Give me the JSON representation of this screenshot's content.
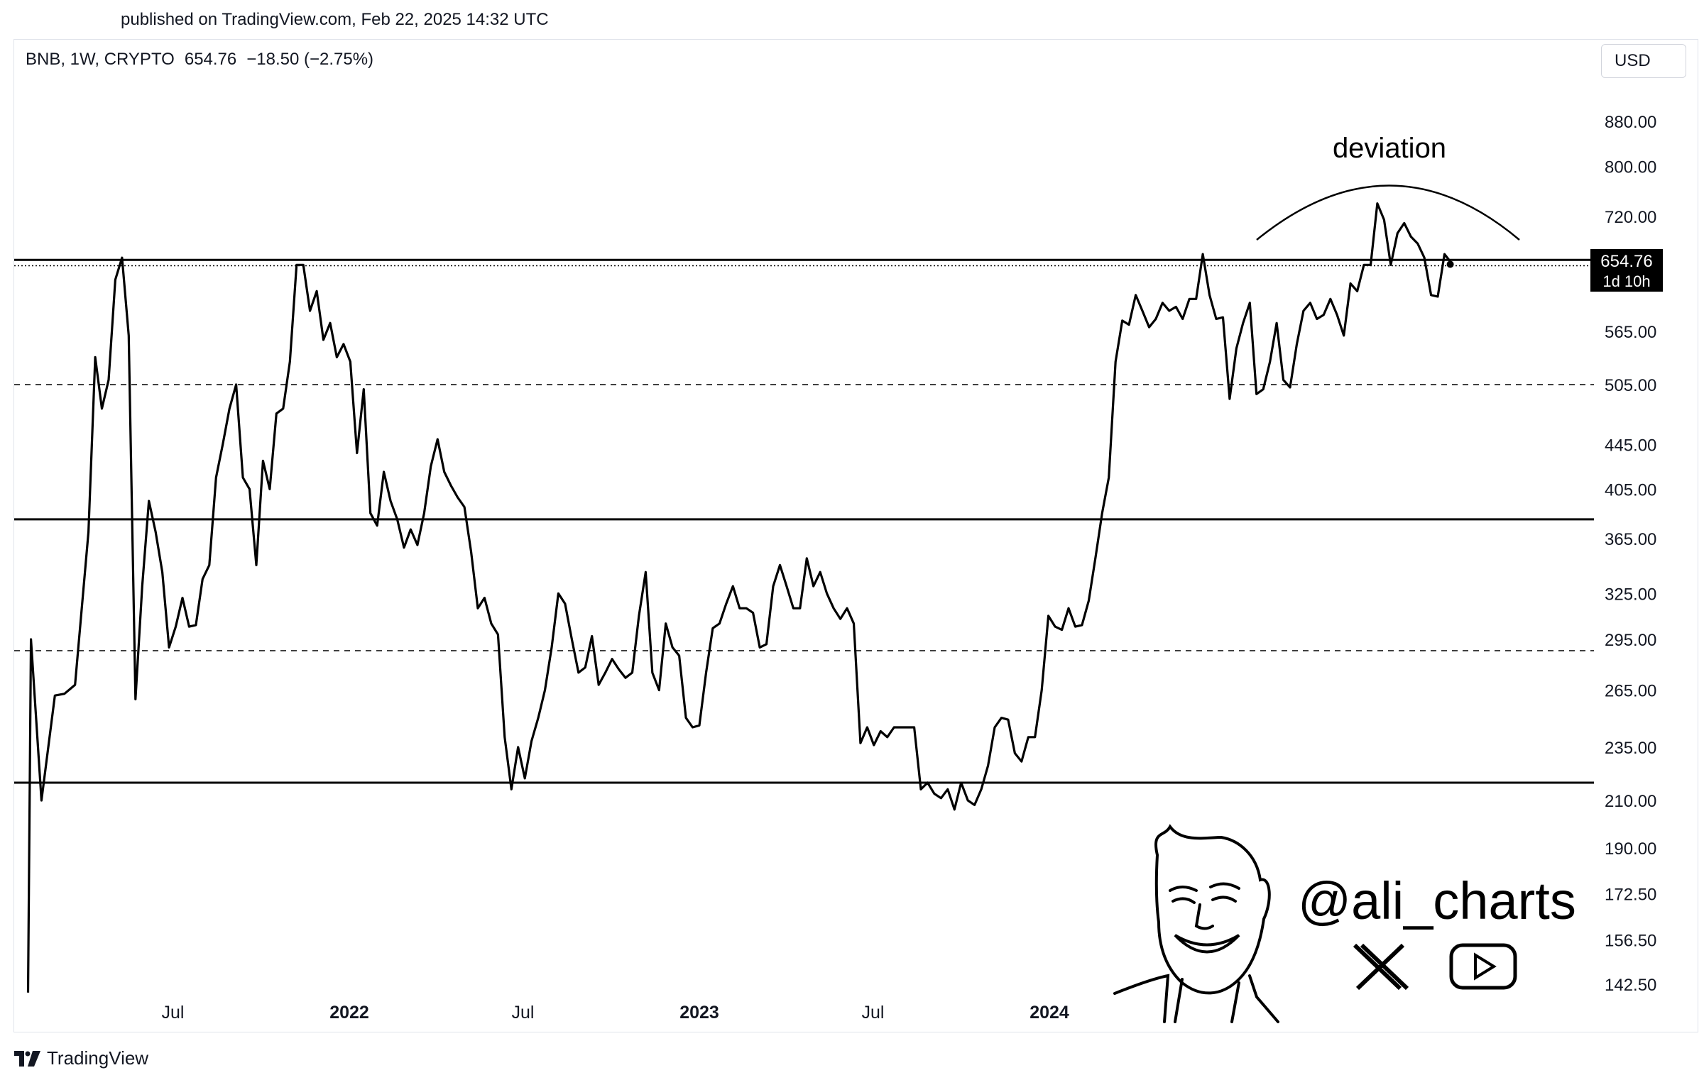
{
  "header": {
    "published": "published on TradingView.com, Feb 22, 2025 14:32 UTC"
  },
  "symbol": {
    "name": "BNB, 1W, CRYPTO",
    "price": "654.76",
    "change": "−18.50 (−2.75%)"
  },
  "currency": "USD",
  "price_tag": {
    "value": "654.76",
    "countdown": "1d 10h"
  },
  "annotation": "deviation",
  "watermark": {
    "handle": "@ali_charts",
    "icons": [
      "x-logo-icon",
      "youtube-play-icon",
      "meme-face-drawing"
    ]
  },
  "footer": {
    "brand": "TradingView"
  },
  "colors": {
    "line": "#000000",
    "background": "#ffffff",
    "grid_border": "#e0e3eb",
    "price_tag_bg": "#000000"
  },
  "chart_data": {
    "type": "line",
    "scale": "log",
    "y_ticks": [
      880,
      800,
      720,
      654.76,
      565,
      505,
      445,
      405,
      365,
      325,
      295,
      265,
      235,
      210,
      190,
      172.5,
      156.5,
      142.5
    ],
    "y_tick_labels": [
      "880.00",
      "800.00",
      "720.00",
      "654.76",
      "565.00",
      "505.00",
      "445.00",
      "405.00",
      "365.00",
      "325.00",
      "295.00",
      "265.00",
      "235.00",
      "210.00",
      "190.00",
      "172.50",
      "156.50",
      "142.50"
    ],
    "x_tick_labels": [
      "Jul",
      "2022",
      "Jul",
      "2023",
      "Jul",
      "2024"
    ],
    "x_tick_dates": [
      "2021-07-01",
      "2022-01-01",
      "2022-07-01",
      "2023-01-01",
      "2023-07-01",
      "2024-01-01"
    ],
    "horizontal_levels": [
      {
        "value": 657,
        "style": "solid"
      },
      {
        "value": 505,
        "style": "dashed"
      },
      {
        "value": 380,
        "style": "solid"
      },
      {
        "value": 288,
        "style": "dashed"
      },
      {
        "value": 218,
        "style": "solid"
      }
    ],
    "series": [
      {
        "points": [
          [
            "2021-01-31",
            140
          ],
          [
            "2021-02-03",
            295
          ],
          [
            "2021-02-14",
            210
          ],
          [
            "2021-02-28",
            262
          ],
          [
            "2021-03-10",
            263
          ],
          [
            "2021-03-21",
            268
          ],
          [
            "2021-04-04",
            370
          ],
          [
            "2021-04-11",
            535
          ],
          [
            "2021-04-18",
            480
          ],
          [
            "2021-04-25",
            510
          ],
          [
            "2021-05-02",
            630
          ],
          [
            "2021-05-09",
            660
          ],
          [
            "2021-05-16",
            560
          ],
          [
            "2021-05-23",
            260
          ],
          [
            "2021-05-30",
            330
          ],
          [
            "2021-06-06",
            395
          ],
          [
            "2021-06-13",
            370
          ],
          [
            "2021-06-20",
            340
          ],
          [
            "2021-06-27",
            290
          ],
          [
            "2021-07-04",
            303
          ],
          [
            "2021-07-11",
            322
          ],
          [
            "2021-07-18",
            303
          ],
          [
            "2021-07-25",
            304
          ],
          [
            "2021-08-01",
            335
          ],
          [
            "2021-08-08",
            345
          ],
          [
            "2021-08-15",
            415
          ],
          [
            "2021-08-22",
            445
          ],
          [
            "2021-08-29",
            480
          ],
          [
            "2021-09-05",
            505
          ],
          [
            "2021-09-12",
            415
          ],
          [
            "2021-09-19",
            405
          ],
          [
            "2021-09-26",
            345
          ],
          [
            "2021-10-03",
            430
          ],
          [
            "2021-10-10",
            405
          ],
          [
            "2021-10-17",
            475
          ],
          [
            "2021-10-24",
            480
          ],
          [
            "2021-10-31",
            530
          ],
          [
            "2021-11-07",
            650
          ],
          [
            "2021-11-14",
            650
          ],
          [
            "2021-11-21",
            590
          ],
          [
            "2021-11-28",
            615
          ],
          [
            "2021-12-05",
            555
          ],
          [
            "2021-12-12",
            575
          ],
          [
            "2021-12-19",
            535
          ],
          [
            "2021-12-26",
            550
          ],
          [
            "2022-01-02",
            530
          ],
          [
            "2022-01-09",
            437
          ],
          [
            "2022-01-16",
            500
          ],
          [
            "2022-01-23",
            385
          ],
          [
            "2022-01-30",
            375
          ],
          [
            "2022-02-06",
            420
          ],
          [
            "2022-02-13",
            395
          ],
          [
            "2022-02-20",
            380
          ],
          [
            "2022-02-27",
            358
          ],
          [
            "2022-03-06",
            372
          ],
          [
            "2022-03-13",
            360
          ],
          [
            "2022-03-20",
            385
          ],
          [
            "2022-03-27",
            425
          ],
          [
            "2022-04-03",
            450
          ],
          [
            "2022-04-10",
            420
          ],
          [
            "2022-04-17",
            408
          ],
          [
            "2022-04-24",
            398
          ],
          [
            "2022-05-01",
            390
          ],
          [
            "2022-05-08",
            355
          ],
          [
            "2022-05-15",
            315
          ],
          [
            "2022-05-22",
            322
          ],
          [
            "2022-05-29",
            305
          ],
          [
            "2022-06-05",
            298
          ],
          [
            "2022-06-12",
            240
          ],
          [
            "2022-06-19",
            215
          ],
          [
            "2022-06-26",
            235
          ],
          [
            "2022-07-03",
            220
          ],
          [
            "2022-07-10",
            238
          ],
          [
            "2022-07-17",
            250
          ],
          [
            "2022-07-24",
            265
          ],
          [
            "2022-07-31",
            290
          ],
          [
            "2022-08-07",
            325
          ],
          [
            "2022-08-14",
            318
          ],
          [
            "2022-08-21",
            295
          ],
          [
            "2022-08-28",
            275
          ],
          [
            "2022-09-04",
            278
          ],
          [
            "2022-09-11",
            297
          ],
          [
            "2022-09-18",
            268
          ],
          [
            "2022-09-25",
            275
          ],
          [
            "2022-10-02",
            283
          ],
          [
            "2022-10-09",
            277
          ],
          [
            "2022-10-16",
            272
          ],
          [
            "2022-10-23",
            275
          ],
          [
            "2022-10-30",
            310
          ],
          [
            "2022-11-06",
            340
          ],
          [
            "2022-11-13",
            275
          ],
          [
            "2022-11-20",
            265
          ],
          [
            "2022-11-27",
            305
          ],
          [
            "2022-12-04",
            290
          ],
          [
            "2022-12-11",
            285
          ],
          [
            "2022-12-18",
            250
          ],
          [
            "2022-12-25",
            245
          ],
          [
            "2023-01-01",
            246
          ],
          [
            "2023-01-08",
            275
          ],
          [
            "2023-01-15",
            302
          ],
          [
            "2023-01-22",
            305
          ],
          [
            "2023-01-29",
            318
          ],
          [
            "2023-02-05",
            330
          ],
          [
            "2023-02-12",
            315
          ],
          [
            "2023-02-19",
            315
          ],
          [
            "2023-02-26",
            312
          ],
          [
            "2023-03-05",
            290
          ],
          [
            "2023-03-12",
            292
          ],
          [
            "2023-03-19",
            330
          ],
          [
            "2023-03-26",
            345
          ],
          [
            "2023-04-02",
            330
          ],
          [
            "2023-04-09",
            315
          ],
          [
            "2023-04-16",
            315
          ],
          [
            "2023-04-23",
            350
          ],
          [
            "2023-04-30",
            330
          ],
          [
            "2023-05-07",
            340
          ],
          [
            "2023-05-14",
            325
          ],
          [
            "2023-05-21",
            315
          ],
          [
            "2023-05-28",
            308
          ],
          [
            "2023-06-04",
            315
          ],
          [
            "2023-06-11",
            305
          ],
          [
            "2023-06-18",
            237
          ],
          [
            "2023-06-25",
            245
          ],
          [
            "2023-07-02",
            236
          ],
          [
            "2023-07-09",
            243
          ],
          [
            "2023-07-16",
            240
          ],
          [
            "2023-07-23",
            245
          ],
          [
            "2023-07-30",
            245
          ],
          [
            "2023-08-06",
            245
          ],
          [
            "2023-08-13",
            245
          ],
          [
            "2023-08-20",
            215
          ],
          [
            "2023-08-27",
            218
          ],
          [
            "2023-09-03",
            213
          ],
          [
            "2023-09-10",
            211
          ],
          [
            "2023-09-17",
            215
          ],
          [
            "2023-09-24",
            206
          ],
          [
            "2023-10-01",
            218
          ],
          [
            "2023-10-08",
            210
          ],
          [
            "2023-10-15",
            208
          ],
          [
            "2023-10-22",
            215
          ],
          [
            "2023-10-29",
            226
          ],
          [
            "2023-11-05",
            245
          ],
          [
            "2023-11-12",
            250
          ],
          [
            "2023-11-19",
            249
          ],
          [
            "2023-11-26",
            232
          ],
          [
            "2023-12-03",
            228
          ],
          [
            "2023-12-10",
            240
          ],
          [
            "2023-12-17",
            240
          ],
          [
            "2023-12-24",
            265
          ],
          [
            "2023-12-31",
            310
          ],
          [
            "2024-01-07",
            303
          ],
          [
            "2024-01-14",
            301
          ],
          [
            "2024-01-21",
            315
          ],
          [
            "2024-01-28",
            303
          ],
          [
            "2024-02-04",
            304
          ],
          [
            "2024-02-11",
            320
          ],
          [
            "2024-02-18",
            350
          ],
          [
            "2024-02-25",
            385
          ],
          [
            "2024-03-03",
            415
          ],
          [
            "2024-03-10",
            530
          ],
          [
            "2024-03-17",
            578
          ],
          [
            "2024-03-24",
            573
          ],
          [
            "2024-03-31",
            610
          ],
          [
            "2024-04-07",
            590
          ],
          [
            "2024-04-14",
            570
          ],
          [
            "2024-04-21",
            580
          ],
          [
            "2024-04-28",
            600
          ],
          [
            "2024-05-05",
            590
          ],
          [
            "2024-05-12",
            595
          ],
          [
            "2024-05-19",
            580
          ],
          [
            "2024-05-26",
            605
          ],
          [
            "2024-06-02",
            605
          ],
          [
            "2024-06-09",
            665
          ],
          [
            "2024-06-16",
            610
          ],
          [
            "2024-06-23",
            580
          ],
          [
            "2024-06-30",
            582
          ],
          [
            "2024-07-07",
            490
          ],
          [
            "2024-07-14",
            545
          ],
          [
            "2024-07-21",
            575
          ],
          [
            "2024-07-28",
            600
          ],
          [
            "2024-08-04",
            495
          ],
          [
            "2024-08-11",
            500
          ],
          [
            "2024-08-18",
            530
          ],
          [
            "2024-08-25",
            575
          ],
          [
            "2024-09-01",
            510
          ],
          [
            "2024-09-08",
            502
          ],
          [
            "2024-09-15",
            550
          ],
          [
            "2024-09-22",
            590
          ],
          [
            "2024-09-29",
            600
          ],
          [
            "2024-10-06",
            580
          ],
          [
            "2024-10-13",
            585
          ],
          [
            "2024-10-20",
            605
          ],
          [
            "2024-10-27",
            585
          ],
          [
            "2024-11-03",
            560
          ],
          [
            "2024-11-10",
            625
          ],
          [
            "2024-11-17",
            615
          ],
          [
            "2024-11-24",
            650
          ],
          [
            "2024-12-01",
            650
          ],
          [
            "2024-12-08",
            740
          ],
          [
            "2024-12-15",
            715
          ],
          [
            "2024-12-22",
            650
          ],
          [
            "2024-12-29",
            695
          ],
          [
            "2025-01-05",
            710
          ],
          [
            "2025-01-12",
            690
          ],
          [
            "2025-01-19",
            680
          ],
          [
            "2025-01-26",
            660
          ],
          [
            "2025-02-02",
            610
          ],
          [
            "2025-02-09",
            608
          ],
          [
            "2025-02-16",
            665
          ],
          [
            "2025-02-22",
            654.76
          ]
        ]
      }
    ]
  }
}
